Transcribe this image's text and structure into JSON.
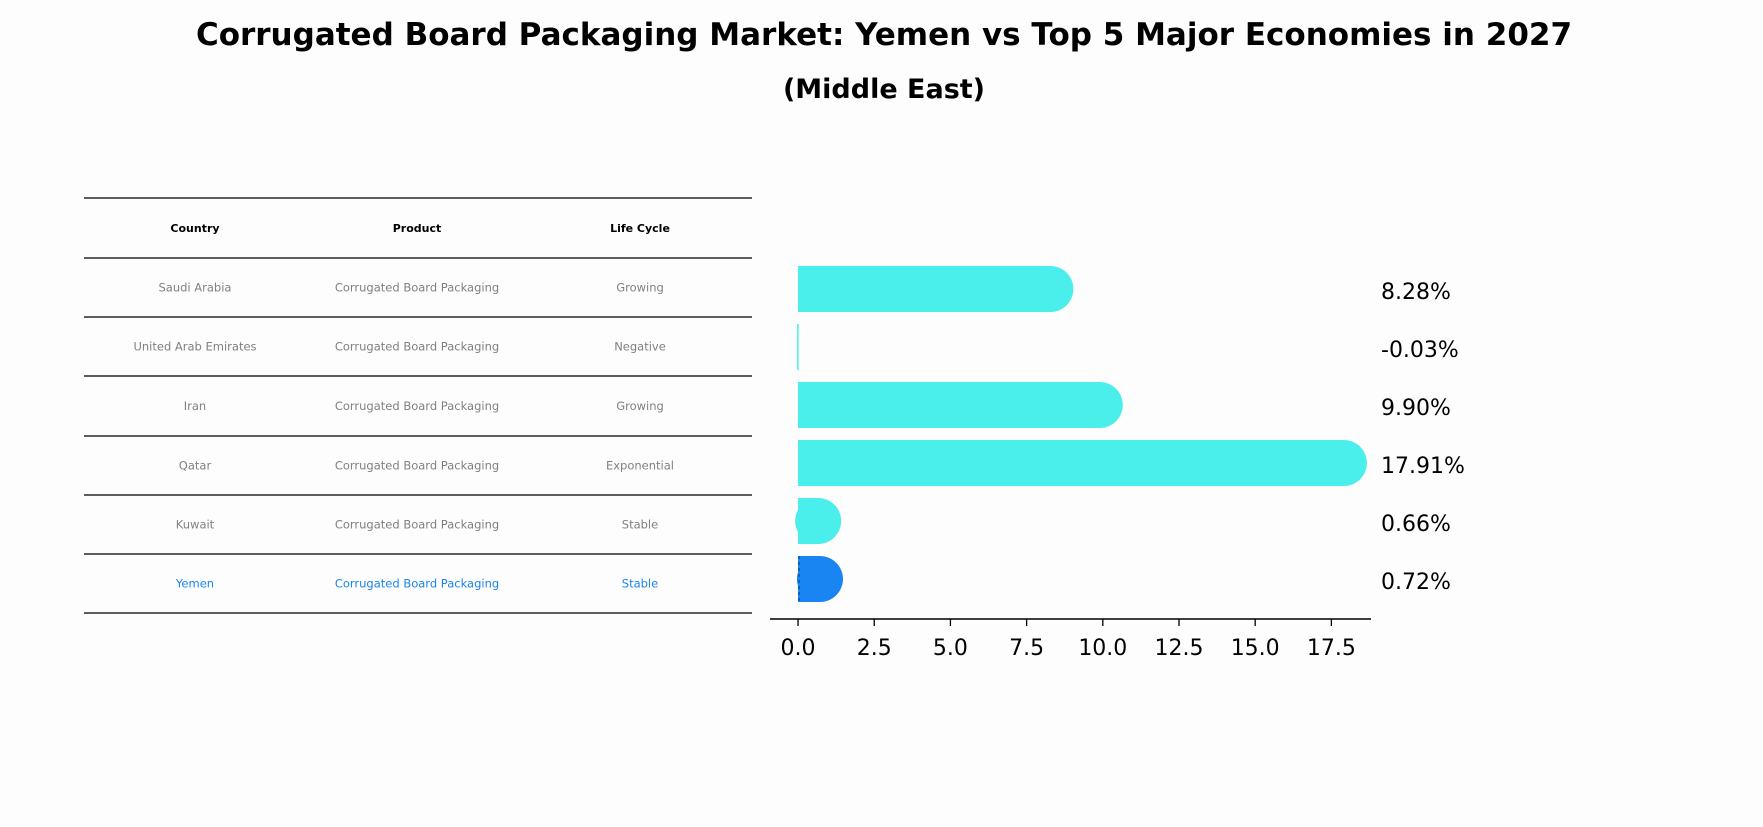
{
  "chart_data": {
    "type": "bar",
    "orientation": "horizontal",
    "title": "Corrugated Board Packaging Market: Yemen vs Top 5 Major Economies in 2027",
    "subtitle": "(Middle East)",
    "categories": [
      "Saudi Arabia",
      "United Arab Emirates",
      "Iran",
      "Qatar",
      "Kuwait",
      "Yemen"
    ],
    "values": [
      8.28,
      -0.03,
      9.9,
      17.91,
      0.66,
      0.72
    ],
    "value_labels": [
      "8.28%",
      "-0.03%",
      "9.90%",
      "17.91%",
      "0.66%",
      "0.72%"
    ],
    "xlim": [
      -0.92,
      18.8
    ],
    "xticks": [
      0,
      2.5,
      5,
      7.5,
      10,
      12.5,
      15,
      17.5
    ],
    "xtick_labels": [
      "0.0",
      "2.5",
      "5.0",
      "7.5",
      "10.0",
      "12.5",
      "15.0",
      "17.5"
    ],
    "colors": {
      "default": "#4aeeea",
      "highlight": "#1985f2"
    },
    "highlight": "Yemen",
    "grid": false
  },
  "table": {
    "headers": [
      "Country",
      "Product",
      "Life Cycle"
    ],
    "rows": [
      [
        "Saudi Arabia",
        "Corrugated Board Packaging",
        "Growing"
      ],
      [
        "United Arab Emirates",
        "Corrugated Board Packaging",
        "Negative"
      ],
      [
        "Iran",
        "Corrugated Board Packaging",
        "Growing"
      ],
      [
        "Qatar",
        "Corrugated Board Packaging",
        "Exponential"
      ],
      [
        "Kuwait",
        "Corrugated Board Packaging",
        "Stable"
      ],
      [
        "Yemen",
        "Corrugated Board Packaging",
        "Stable"
      ]
    ]
  }
}
